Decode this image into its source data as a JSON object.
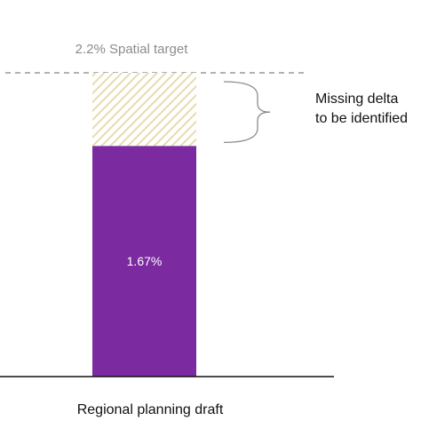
{
  "chart_data": {
    "type": "bar",
    "categories": [
      "Regional planning draft"
    ],
    "values": [
      1.67
    ],
    "target": {
      "value": 2.2,
      "label": "2.2% Spatial target"
    },
    "gap": {
      "from": 1.67,
      "to": 2.2,
      "annotation_lines": [
        "Missing delta",
        "to be identified"
      ]
    },
    "data_labels": [
      "1.67%"
    ],
    "ylim": [
      0,
      2.2
    ],
    "grid": false,
    "colors": {
      "bar": "#7b2aa0",
      "gap_hatch": "#e6dcae",
      "target_line": "#999999",
      "brace": "#8c8c8c",
      "axis": "#111111"
    }
  }
}
